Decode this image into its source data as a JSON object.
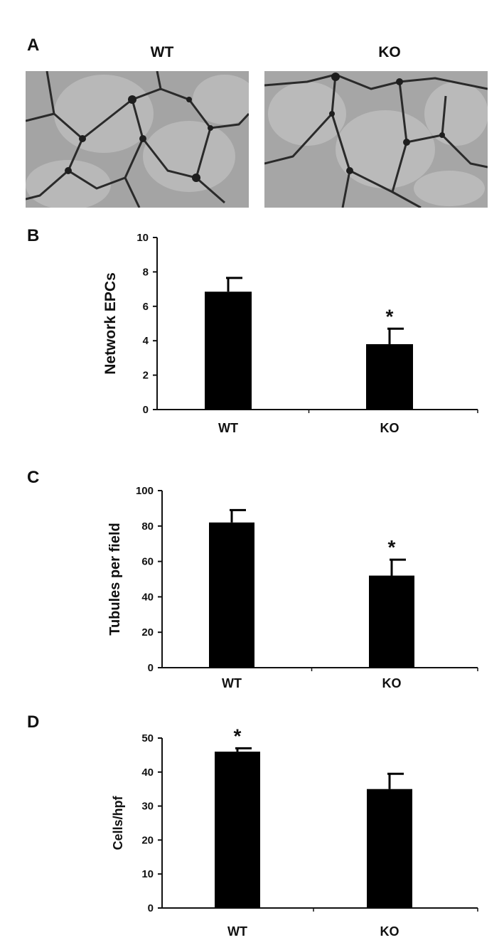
{
  "panel_a": {
    "letter": "A",
    "images": [
      {
        "title": "WT"
      },
      {
        "title": "KO"
      }
    ]
  },
  "chart_data": [
    {
      "panel": "B",
      "type": "bar",
      "categories": [
        "WT",
        "KO"
      ],
      "values": [
        6.85,
        3.8
      ],
      "errors": [
        0.8,
        0.9
      ],
      "significance": [
        "",
        "*"
      ],
      "ylabel": "Network EPCs",
      "ylim": [
        0,
        10
      ],
      "yticks": [
        0,
        2,
        4,
        6,
        8,
        10
      ],
      "grid": false
    },
    {
      "panel": "C",
      "type": "bar",
      "categories": [
        "WT",
        "KO"
      ],
      "values": [
        82,
        52
      ],
      "errors": [
        7,
        9
      ],
      "significance": [
        "",
        "*"
      ],
      "ylabel": "Tubules per field",
      "ylim": [
        0,
        100
      ],
      "yticks": [
        0,
        20,
        40,
        60,
        80,
        100
      ],
      "grid": false
    },
    {
      "panel": "D",
      "type": "bar",
      "categories": [
        "WT",
        "KO"
      ],
      "values": [
        46,
        35
      ],
      "errors": [
        1,
        4.5
      ],
      "significance": [
        "*",
        ""
      ],
      "ylabel": "Cells/hpf",
      "ylim": [
        0,
        50
      ],
      "yticks": [
        0,
        10,
        20,
        30,
        40,
        50
      ],
      "grid": false
    }
  ]
}
